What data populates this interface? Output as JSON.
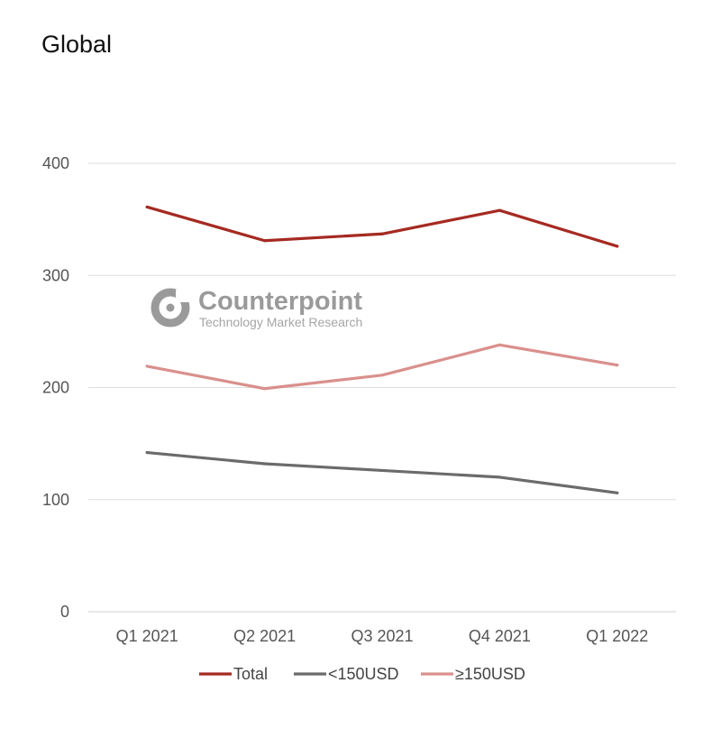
{
  "chart_data": {
    "type": "line",
    "title": "Global",
    "categories": [
      "Q1 2021",
      "Q2 2021",
      "Q3 2021",
      "Q4 2021",
      "Q1 2022"
    ],
    "ylim": [
      0,
      400
    ],
    "yticks": [
      "0",
      "100",
      "200",
      "300",
      "400"
    ],
    "grid": true,
    "legend_position": "bottom",
    "series": [
      {
        "name": "Total",
        "color": "#a52a22",
        "values": [
          361,
          331,
          337,
          358,
          326
        ]
      },
      {
        "name": "<150USD",
        "color": "#6b6b6b",
        "values": [
          142,
          132,
          126,
          120,
          106
        ]
      },
      {
        "name": "≥150USD",
        "color": "#d9908c",
        "values": [
          219,
          199,
          211,
          238,
          220
        ]
      }
    ]
  },
  "watermark": {
    "brand": "Counterpoint",
    "tagline": "Technology Market Research"
  }
}
